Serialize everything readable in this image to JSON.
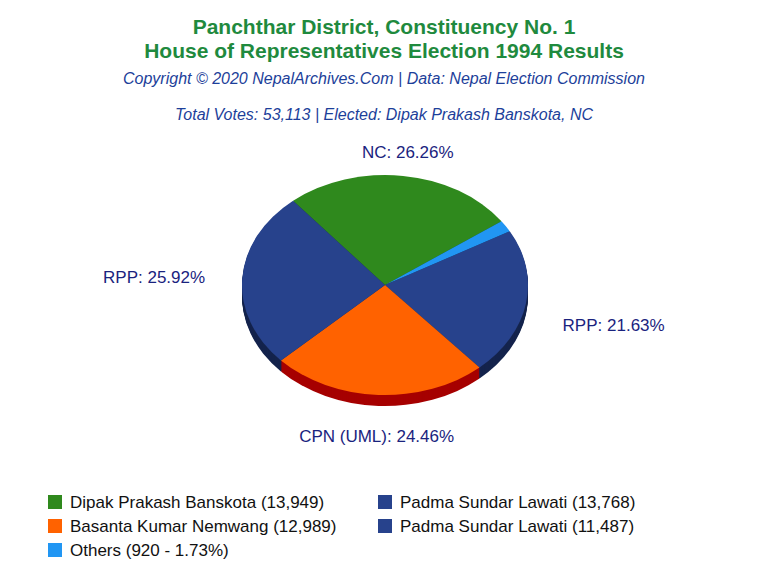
{
  "chart_data": {
    "type": "pie",
    "title": "Panchthar District, Constituency No. 1",
    "subtitle": "House of Representatives Election 1994 Results",
    "source": "Copyright © 2020 NepalArchives.Com | Data: Nepal Election Commission",
    "annotation": "Total Votes: 53,113 | Elected: Dipak Prakash Banskota, NC",
    "categories": [
      "NC",
      "Others",
      "RPP",
      "CPN (UML)",
      "RPP"
    ],
    "values": [
      26.26,
      1.73,
      21.63,
      24.46,
      25.92
    ],
    "value_labels": [
      "NC: 26.26%",
      null,
      "RPP: 21.63%",
      "CPN (UML): 24.46%",
      "RPP: 25.92%"
    ],
    "colors": [
      "#2f891d",
      "#2196f3",
      "#27428c",
      "#ff6200",
      "#27428c"
    ],
    "data_labels": true,
    "legend_entries": [
      {
        "label": "Dipak Prakash Banskota (13,949)",
        "color": "#2f891d"
      },
      {
        "label": "Padma Sundar Lawati (13,768)",
        "color": "#27428c"
      },
      {
        "label": "Basanta Kumar Nemwang (12,989)",
        "color": "#ff6200"
      },
      {
        "label": "Padma Sundar Lawati (11,487)",
        "color": "#27428c"
      },
      {
        "label": "Others (920 - 1.73%)",
        "color": "#2196f3"
      }
    ]
  }
}
